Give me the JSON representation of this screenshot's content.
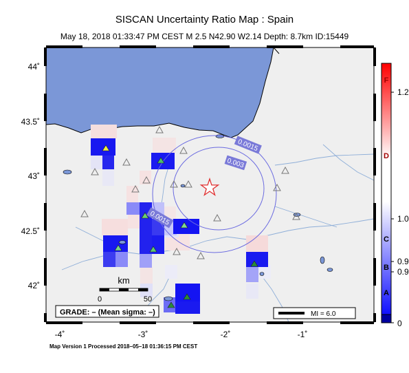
{
  "header": {
    "title": "SISCAN Uncertainty Ratio Map : Spain",
    "subtitle": "May 18, 2018 01:33:47 PM CEST    M 2.5    N42.90 W2.14    Depth: 8.7km    ID:15449"
  },
  "map": {
    "x_ticks": [
      "-4˚",
      "-3˚",
      "-2˚",
      "-1˚"
    ],
    "y_ticks": [
      "44˚",
      "43.5˚",
      "43˚",
      "42.5˚",
      "42˚"
    ],
    "contours": [
      "0.0015",
      "0.003",
      "0.0015"
    ],
    "scale_unit": "km",
    "scale_values": [
      "0",
      "50"
    ],
    "grade_label": "GRADE: – (Mean sigma: –)",
    "mi_label": "MI = 6.0",
    "colors": {
      "ocean": "#7b97d7",
      "land": "#efefef",
      "river": "#8eaed8",
      "contour": "#6a6ae0",
      "star": "#e03030"
    }
  },
  "colorbar": {
    "letters": [
      "F",
      "D",
      "C",
      "B",
      "A"
    ],
    "values": [
      "1.2",
      "1.0",
      "0.9",
      "0.9",
      "0"
    ]
  },
  "footer": "Map Version 1 Processed 2018–05–18 01:36:15 PM CEST"
}
